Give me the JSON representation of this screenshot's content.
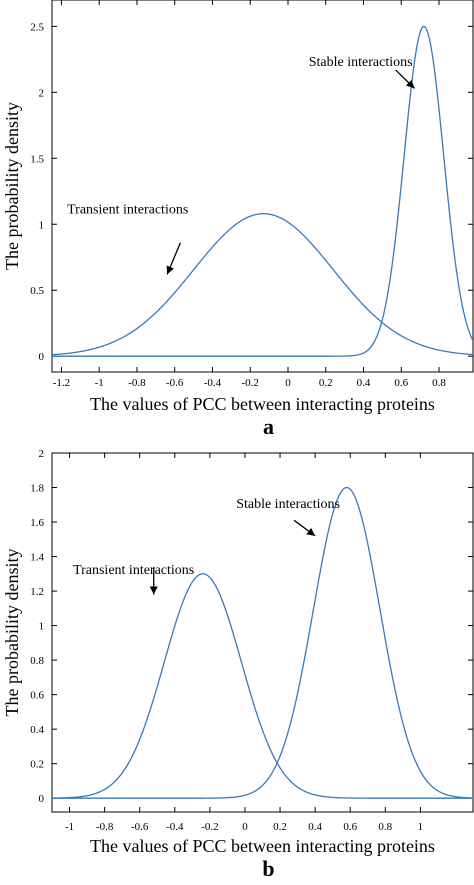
{
  "chart_data": [
    {
      "panel_label": "a",
      "type": "line",
      "xlabel": "The values of PCC between interacting proteins",
      "ylabel": "The probability density",
      "xlim": [
        -1.25,
        0.98
      ],
      "ylim": [
        -0.12,
        2.7
      ],
      "xticks": [
        -1.2,
        -1,
        -0.8,
        -0.6,
        -0.4,
        -0.2,
        0,
        0.2,
        0.4,
        0.6,
        0.8
      ],
      "yticks": [
        0,
        0.5,
        1,
        1.5,
        2,
        2.5
      ],
      "series": [
        {
          "name": "Transient interactions",
          "distribution": "normal",
          "mean": -0.13,
          "sd": 0.37,
          "peak": 1.08,
          "color": "#3a7ab8"
        },
        {
          "name": "Stable interactions",
          "distribution": "normal",
          "mean": 0.72,
          "sd": 0.105,
          "peak": 2.5,
          "color": "#3a7ab8"
        }
      ],
      "annotations": [
        {
          "text": "Transient interactions",
          "x": -1.17,
          "y": 1.08,
          "arrow_from": [
            -0.57,
            0.86
          ],
          "arrow_to": [
            -0.64,
            0.62
          ]
        },
        {
          "text": "Stable interactions",
          "x": 0.11,
          "y": 2.2,
          "arrow_from": [
            0.57,
            2.17
          ],
          "arrow_to": [
            0.67,
            2.03
          ]
        }
      ]
    },
    {
      "panel_label": "b",
      "type": "line",
      "xlabel": "The values of PCC between interacting proteins",
      "ylabel": "The probability density",
      "xlim": [
        -1.1,
        1.3
      ],
      "ylim": [
        -0.08,
        2.0
      ],
      "xticks": [
        -1,
        -0.8,
        -0.6,
        -0.4,
        -0.2,
        0,
        0.2,
        0.4,
        0.6,
        0.8,
        1
      ],
      "yticks": [
        0,
        0.2,
        0.4,
        0.6,
        0.8,
        1,
        1.2,
        1.4,
        1.6,
        1.8,
        2
      ],
      "series": [
        {
          "name": "Transient interactions",
          "distribution": "normal",
          "mean": -0.24,
          "sd": 0.22,
          "peak": 1.3,
          "color": "#3a7ab8"
        },
        {
          "name": "Stable interactions",
          "distribution": "normal",
          "mean": 0.58,
          "sd": 0.19,
          "peak": 1.8,
          "color": "#3a7ab8"
        }
      ],
      "annotations": [
        {
          "text": "Transient interactions",
          "x": -0.98,
          "y": 1.3,
          "arrow_from": [
            -0.52,
            1.34
          ],
          "arrow_to": [
            -0.52,
            1.18
          ]
        },
        {
          "text": "Stable interactions",
          "x": -0.05,
          "y": 1.68,
          "arrow_from": [
            0.28,
            1.61
          ],
          "arrow_to": [
            0.4,
            1.52
          ]
        }
      ]
    }
  ]
}
